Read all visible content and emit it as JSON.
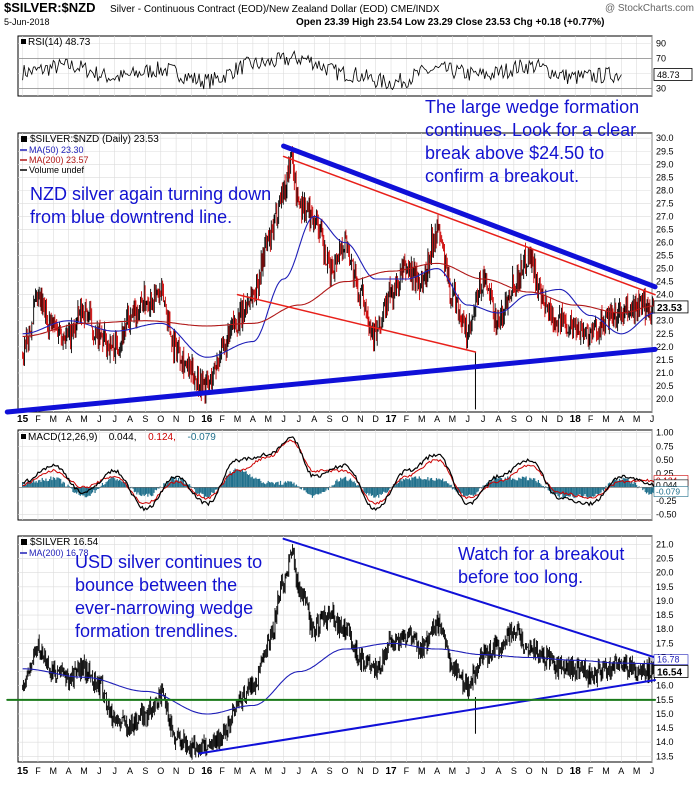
{
  "header": {
    "symbol": "$SILVER:$NZD",
    "description": "Silver - Continuous Contract (EOD)/New Zealand Dollar (EOD)  CME/INDX",
    "watermark": "@ StockCharts.com",
    "date": "5-Jun-2018",
    "ohlc": "Open 23.39  High 23.54  Low 23.29  Close 23.53  Chg +0.18 (+0.77%)"
  },
  "colors": {
    "price": "#000000",
    "price_up": "#000000",
    "price_down": "#cc0000",
    "ma50": "#1f1fb8",
    "ma200": "#b01818",
    "trendline_blue": "#1010d8",
    "trendline_red": "#e8201a",
    "macd_line": "#000000",
    "signal_line": "#cc0000",
    "histogram": "#1f6f8b",
    "support_green": "#1a7a1a",
    "annotation_text": "#1212d0",
    "grid": "#dcdcdc",
    "price_tag": "#ffffff"
  },
  "time_axis": [
    "15",
    "F",
    "M",
    "A",
    "M",
    "J",
    "J",
    "A",
    "S",
    "O",
    "N",
    "D",
    "16",
    "F",
    "M",
    "A",
    "M",
    "J",
    "J",
    "A",
    "S",
    "O",
    "N",
    "D",
    "17",
    "F",
    "M",
    "A",
    "M",
    "J",
    "J",
    "A",
    "S",
    "O",
    "N",
    "D",
    "18",
    "F",
    "M",
    "A",
    "M",
    "J"
  ],
  "chart_data": [
    {
      "id": "rsi",
      "type": "line",
      "title": "RSI(14) 48.73",
      "yticks": [
        30,
        50,
        70,
        90
      ],
      "ylim": [
        20,
        100
      ],
      "reference_lines": [
        30,
        70
      ],
      "last_value_label": "48.73",
      "series": [
        {
          "name": "RSI(14)",
          "approx_x_months": [
            0,
            3,
            6,
            9,
            12,
            15,
            18,
            21,
            24,
            27,
            30,
            33,
            36,
            39
          ],
          "values": [
            52,
            60,
            45,
            55,
            40,
            62,
            70,
            50,
            38,
            55,
            48,
            60,
            45,
            48.73
          ]
        }
      ]
    },
    {
      "id": "nzd",
      "type": "line",
      "title": "$SILVER:$NZD (Daily) 23.53",
      "legend": [
        "MA(50) 23.30",
        "MA(200) 23.57",
        "Volume undef"
      ],
      "yticks": [
        20.0,
        20.5,
        21.0,
        21.5,
        22.0,
        22.5,
        23.0,
        23.5,
        24.0,
        24.5,
        25.0,
        25.5,
        26.0,
        26.5,
        27.0,
        27.5,
        28.0,
        28.5,
        29.0,
        29.5,
        30.0
      ],
      "ylim": [
        19.5,
        30.2
      ],
      "last_value_label": "23.53",
      "series": [
        {
          "name": "Price",
          "approx_months": [
            0,
            1,
            2,
            3,
            4,
            5,
            6,
            7,
            8,
            9,
            10,
            11,
            12,
            13,
            14,
            15,
            16,
            17,
            17.5,
            18,
            19,
            20,
            21,
            22,
            23,
            24,
            25,
            26,
            27,
            28,
            29,
            30,
            31,
            32,
            33,
            34,
            35,
            36,
            37,
            38,
            39,
            40,
            41.2
          ],
          "values": [
            21.8,
            23.7,
            22.8,
            22.4,
            23.4,
            22.3,
            22.0,
            23.0,
            23.8,
            24.0,
            22.0,
            21.0,
            20.5,
            21.8,
            23.0,
            24.0,
            26.0,
            28.0,
            29.2,
            27.5,
            27.0,
            25.0,
            26.0,
            24.0,
            22.5,
            24.0,
            25.0,
            24.5,
            26.5,
            24.0,
            22.5,
            24.5,
            23.0,
            24.5,
            25.5,
            23.5,
            23.0,
            22.8,
            22.5,
            23.0,
            23.2,
            23.5,
            23.53
          ]
        },
        {
          "name": "MA(50)",
          "approx_months": [
            0,
            3,
            6,
            9,
            12,
            15,
            17,
            19,
            21,
            23,
            25,
            27,
            29,
            31,
            33,
            35,
            37,
            39,
            41.2
          ],
          "values": [
            22.5,
            23.0,
            22.6,
            22.9,
            21.6,
            22.2,
            24.6,
            27.0,
            26.0,
            24.6,
            24.6,
            25.0,
            23.6,
            23.3,
            24.0,
            24.2,
            23.2,
            22.5,
            23.3
          ]
        },
        {
          "name": "MA(200)",
          "approx_months": [
            0,
            4,
            8,
            12,
            15,
            18,
            21,
            24,
            27,
            30,
            33,
            36,
            39,
            41.2
          ],
          "values": [
            22.4,
            22.9,
            23.0,
            22.8,
            22.9,
            23.6,
            24.5,
            24.9,
            25.2,
            24.6,
            24.1,
            23.6,
            23.3,
            23.57
          ]
        }
      ],
      "trendlines": [
        {
          "color": "blue",
          "from": {
            "month": 17,
            "value": 29.7
          },
          "to": {
            "month": 41.2,
            "value": 24.3
          }
        },
        {
          "color": "red",
          "from": {
            "month": 17,
            "value": 29.3
          },
          "to": {
            "month": 41.2,
            "value": 24.0
          }
        },
        {
          "color": "red",
          "from": {
            "month": 14,
            "value": 24.0
          },
          "to": {
            "month": 29.5,
            "value": 21.8
          }
        },
        {
          "color": "blue",
          "from": {
            "month": -1,
            "value": 19.5
          },
          "to": {
            "month": 41.2,
            "value": 21.9
          }
        }
      ]
    },
    {
      "id": "macd",
      "type": "line",
      "title": "MACD(12,26,9) 0.044, 0.124, -0.079",
      "title_parts": [
        "MACD(12,26,9)",
        "0.044,",
        "0.124,",
        "-0.079"
      ],
      "yticks": [
        -0.5,
        -0.25,
        0.0,
        0.25,
        0.5,
        0.75,
        1.0
      ],
      "ylim": [
        -0.6,
        1.05
      ],
      "last_value_labels": [
        "0.124",
        "0.044",
        "-0.079"
      ],
      "series": [
        {
          "name": "MACD",
          "approx_months": [
            0,
            2,
            4,
            6,
            8,
            10,
            12,
            14,
            16,
            17.5,
            19,
            21,
            23,
            25,
            27,
            29,
            31,
            33,
            35,
            37,
            39,
            41.2
          ],
          "values": [
            0.1,
            0.4,
            -0.1,
            0.3,
            -0.4,
            0.2,
            -0.3,
            0.5,
            0.6,
            0.9,
            0.2,
            0.4,
            -0.4,
            0.3,
            0.6,
            -0.3,
            0.2,
            0.5,
            -0.2,
            -0.3,
            0.2,
            0.044
          ]
        },
        {
          "name": "Signal",
          "approx_months": [
            0,
            2,
            4,
            6,
            8,
            10,
            12,
            14,
            16,
            17.5,
            19,
            21,
            23,
            25,
            27,
            29,
            31,
            33,
            35,
            37,
            39,
            41.2
          ],
          "values": [
            0.05,
            0.3,
            0.0,
            0.2,
            -0.3,
            0.1,
            -0.2,
            0.3,
            0.55,
            0.85,
            0.3,
            0.3,
            -0.3,
            0.2,
            0.5,
            -0.2,
            0.1,
            0.4,
            -0.1,
            -0.2,
            0.1,
            0.124
          ]
        }
      ]
    },
    {
      "id": "usd",
      "type": "line",
      "title": "$SILVER 16.54",
      "legend": [
        "MA(200) 16.78"
      ],
      "yticks": [
        13.5,
        14.0,
        14.5,
        15.0,
        15.5,
        16.0,
        16.5,
        17.0,
        17.5,
        18.0,
        18.5,
        19.0,
        19.5,
        20.0,
        20.5,
        21.0
      ],
      "ylim": [
        13.3,
        21.3
      ],
      "last_value_labels": [
        "16.54",
        "16.78"
      ],
      "series": [
        {
          "name": "Price",
          "approx_months": [
            0,
            1,
            2,
            3,
            4,
            5,
            6,
            7,
            8,
            9,
            10,
            11,
            12,
            13,
            14,
            15,
            16,
            17,
            17.5,
            18,
            19,
            20,
            21,
            22,
            23,
            24,
            25,
            26,
            27,
            28,
            29,
            30,
            31,
            32,
            33,
            34,
            35,
            36,
            37,
            38,
            39,
            40,
            41.2
          ],
          "values": [
            16.0,
            17.3,
            16.5,
            16.3,
            16.6,
            16.0,
            14.8,
            14.6,
            15.0,
            15.6,
            14.2,
            13.8,
            13.9,
            14.2,
            15.4,
            16.0,
            17.5,
            19.6,
            20.7,
            19.5,
            18.0,
            18.5,
            18.0,
            17.0,
            16.5,
            17.5,
            17.8,
            17.3,
            18.2,
            16.7,
            16.0,
            17.0,
            17.4,
            18.0,
            17.3,
            17.0,
            16.6,
            16.6,
            16.4,
            16.6,
            16.8,
            16.5,
            16.54
          ]
        },
        {
          "name": "MA(200)",
          "approx_months": [
            0,
            4,
            8,
            12,
            15,
            18,
            21,
            24,
            27,
            30,
            33,
            36,
            39,
            41.2
          ],
          "values": [
            16.6,
            16.3,
            15.8,
            15.0,
            15.3,
            16.5,
            17.3,
            17.5,
            17.3,
            17.1,
            17.0,
            16.9,
            16.8,
            16.78
          ]
        }
      ],
      "trendlines": [
        {
          "color": "blue",
          "from": {
            "month": 17,
            "value": 21.2
          },
          "to": {
            "month": 41.2,
            "value": 17.0
          }
        },
        {
          "color": "blue",
          "from": {
            "month": 11.5,
            "value": 13.6
          },
          "to": {
            "month": 41.2,
            "value": 16.2
          }
        },
        {
          "color": "green",
          "from": {
            "month": -1,
            "value": 15.5
          },
          "to": {
            "month": 41.2,
            "value": 15.5
          }
        }
      ]
    }
  ],
  "annotations": {
    "nzd_right": [
      "The large wedge formation",
      "continues. Look for a clear",
      "break above $24.50 to",
      "confirm a breakout."
    ],
    "nzd_left": [
      "NZD silver again turning down",
      "from blue downtrend line."
    ],
    "usd_left": [
      "USD silver continues to",
      "bounce between the",
      "ever-narrowing wedge",
      "formation trendlines."
    ],
    "usd_right": [
      "Watch for a breakout",
      "before too long."
    ]
  }
}
